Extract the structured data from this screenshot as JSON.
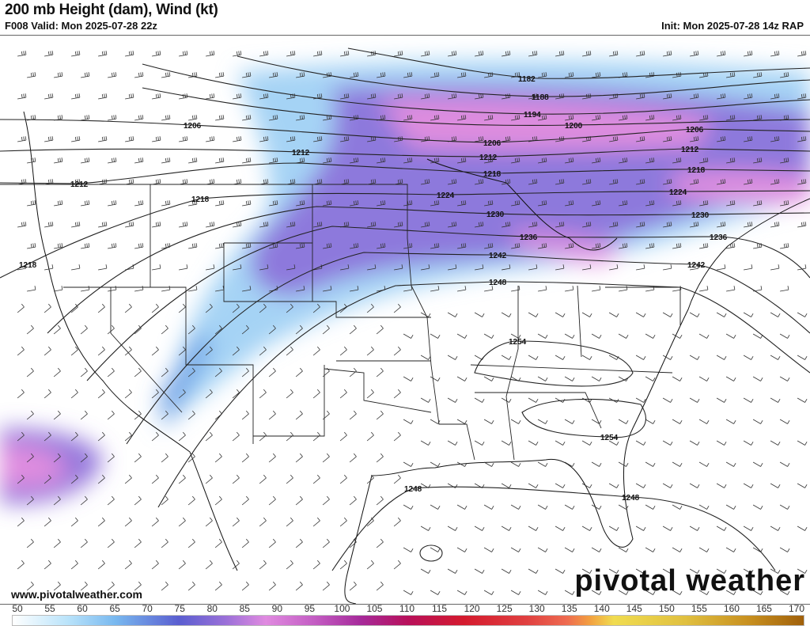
{
  "header": {
    "title": "200 mb Height (dam), Wind (kt)",
    "valid": "F008 Valid: Mon 2025-07-28 22z",
    "init": "Init: Mon 2025-07-28 14z RAP"
  },
  "footer": {
    "website": "www.pivotalweather.com",
    "logo_left": "pivotal",
    "logo_right": "weather"
  },
  "colorbar": {
    "units": "kt",
    "ticks": [
      "50",
      "55",
      "60",
      "65",
      "70",
      "75",
      "80",
      "85",
      "90",
      "95",
      "100",
      "105",
      "110",
      "115",
      "120",
      "125",
      "130",
      "135",
      "140",
      "145",
      "150",
      "155",
      "160",
      "165",
      "170"
    ],
    "colors": {
      "low": "#ffffff",
      "mid_blue": "#5a5ed0",
      "mid_purple": "#c45ec4",
      "magenta": "#a62a9a",
      "red": "#d41a2e",
      "orange": "#f2a040",
      "yellow": "#f0dc50",
      "brown": "#a0600a"
    }
  },
  "contour_labels": [
    "1182",
    "1188",
    "1194",
    "1200",
    "1206",
    "1206",
    "1206",
    "1212",
    "1212",
    "1212",
    "1212",
    "1218",
    "1218",
    "1218",
    "1218",
    "1224",
    "1224",
    "1230",
    "1230",
    "1236",
    "1236",
    "1242",
    "1242",
    "1248",
    "1248",
    "1248",
    "1254",
    "1254"
  ]
}
